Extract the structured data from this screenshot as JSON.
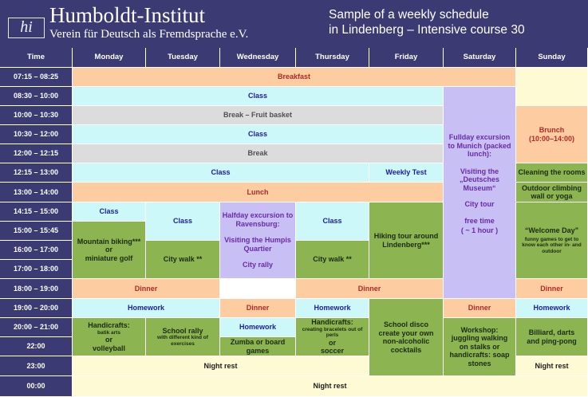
{
  "header": {
    "logo_mark": "hi",
    "logo_title": "Humboldt-Institut",
    "logo_subtitle": "Verein für Deutsch als Fremdsprache e.V.",
    "title_line1": "Sample of a weekly schedule",
    "title_line2": "in Lindenberg – Intensive course 30"
  },
  "columns": {
    "time": "Time",
    "monday": "Monday",
    "tuesday": "Tuesday",
    "wednesday": "Wednesday",
    "thursday": "Thursday",
    "friday": "Friday",
    "saturday": "Saturday",
    "sunday": "Sunday"
  },
  "times": [
    "07:15 – 08:25",
    "08:30 – 10:00",
    "10:00 – 10:30",
    "10:30 – 12:00",
    "12:00 – 12:15",
    "12:15 – 13:00",
    "13:00 – 14:00",
    "14:15 – 15:00",
    "15:00 – 15:45",
    "16:00 – 17:00",
    "17:00 – 18:00",
    "18:00 – 19:00",
    "19:00 – 20:00",
    "20:00 – 21:00",
    "22:00",
    "23:00",
    "00:00"
  ],
  "events": {
    "breakfast": "Breakfast",
    "class1": "Class",
    "break_fruit": "Break – Fruit basket",
    "class2": "Class",
    "break": "Break",
    "class3": "Class",
    "weekly_test": "Weekly Test",
    "lunch": "Lunch",
    "sat_excursion": "Fullday excursion to Munich (packed lunch):",
    "sat_museum": "Visiting the „Deutsches Museum“",
    "sat_city_tour": "City tour",
    "sat_free_time": "free time",
    "sat_free_time_dur": "( ~ 1 hour )",
    "sun_brunch": "Brunch",
    "sun_brunch_time": "(10:00–14:00)",
    "sun_cleaning": "Cleaning the rooms",
    "sun_climbing": "Outdoor climbing wall or yoga",
    "sun_welcome": "“Welcome Day”",
    "sun_welcome_detail": "funny games to get to know each other in- and outdoor",
    "mon_class": "Class",
    "mon_biking": "Mountain biking***",
    "mon_or": "or",
    "mon_golf": "miniature golf",
    "tue_class": "Class",
    "tue_city_walk": "City walk **",
    "wed_halfday": "Halfday excursion to Ravensburg:",
    "wed_visiting": "Visiting the Humpis Quartier",
    "wed_city_rally": "City rally",
    "thu_class": "Class",
    "thu_city_walk": "City walk **",
    "fri_hiking": "Hiking tour around Lindenberg***",
    "dinner_mon_tue": "Dinner",
    "dinner_thu_fri": "Dinner",
    "dinner_sun": "Dinner",
    "homework_mon_tue": "Homework",
    "dinner_wed": "Dinner",
    "homework_thu": "Homework",
    "dinner_sat": "Dinner",
    "homework_sun": "Homework",
    "homework_wed": "Homework",
    "mon_handicrafts": "Handicrafts:",
    "mon_batik": "batik arts",
    "mon_or2": "or",
    "mon_volleyball": "volleyball",
    "tue_rally": "School rally",
    "tue_rally_detail": "with different kind of exercises",
    "wed_zumba": "Zumba or board games",
    "thu_handicrafts": "Handicrafts:",
    "thu_bracelets": "creating bracelets out of perls",
    "thu_or": "or",
    "thu_soccer": "soccer",
    "fri_disco": "School disco create your own non-alcoholic cocktails",
    "sat_workshop": "Workshop: juggling walking on stalks or handicrafts: soap stones",
    "sun_billiard": "Billiard, darts and ping-pong",
    "night_rest_mon_thu": "Night rest",
    "night_rest_sun": "Night rest",
    "night_rest_all": "Night rest"
  }
}
